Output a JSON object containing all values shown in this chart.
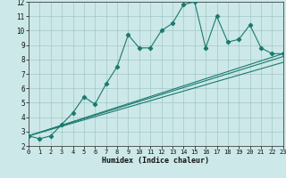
{
  "xlabel": "Humidex (Indice chaleur)",
  "bg_color": "#cce8e8",
  "line_color": "#1a7a6e",
  "main_series_x": [
    0,
    1,
    2,
    3,
    4,
    5,
    6,
    7,
    8,
    9,
    10,
    11,
    12,
    13,
    14,
    15,
    16,
    17,
    18,
    19,
    20,
    21,
    22,
    23
  ],
  "main_series_y": [
    2.7,
    2.5,
    2.7,
    3.5,
    4.3,
    5.4,
    4.9,
    6.3,
    7.5,
    9.7,
    8.8,
    8.8,
    10.0,
    10.5,
    11.8,
    12.0,
    8.8,
    11.0,
    9.2,
    9.4,
    10.4,
    8.8,
    8.4,
    8.4
  ],
  "reg_line1_x": [
    0,
    23
  ],
  "reg_line1_y": [
    2.7,
    8.4
  ],
  "reg_line2_x": [
    0,
    23
  ],
  "reg_line2_y": [
    2.7,
    8.2
  ],
  "reg_line3_x": [
    0,
    23
  ],
  "reg_line3_y": [
    2.7,
    7.8
  ],
  "xlim": [
    0,
    23
  ],
  "ylim": [
    2,
    12
  ],
  "yticks": [
    2,
    3,
    4,
    5,
    6,
    7,
    8,
    9,
    10,
    11,
    12
  ],
  "xticks": [
    0,
    1,
    2,
    3,
    4,
    5,
    6,
    7,
    8,
    9,
    10,
    11,
    12,
    13,
    14,
    15,
    16,
    17,
    18,
    19,
    20,
    21,
    22,
    23
  ]
}
